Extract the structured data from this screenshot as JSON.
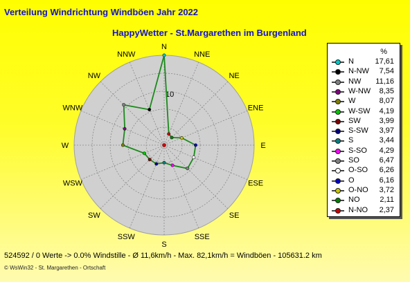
{
  "header": {
    "title": "Verteilung Windrichtung Windböen  Jahr 2022",
    "subtitle": "HappyWetter - St.Margarethen im Burgenland"
  },
  "legend": {
    "unit": "%",
    "entries": [
      {
        "label": "N",
        "value": "17,61",
        "color": "#00c8c8"
      },
      {
        "label": "N-NW",
        "value": "7,54",
        "color": "#000000"
      },
      {
        "label": "NW",
        "value": "11,16",
        "color": "#808080"
      },
      {
        "label": "W-NW",
        "value": "8,35",
        "color": "#800080"
      },
      {
        "label": "W",
        "value": "8,07",
        "color": "#808000"
      },
      {
        "label": "W-SW",
        "value": "4,19",
        "color": "#00c800"
      },
      {
        "label": "SW",
        "value": "3,99",
        "color": "#800000"
      },
      {
        "label": "S-SW",
        "value": "3,97",
        "color": "#000080"
      },
      {
        "label": "S",
        "value": "3,44",
        "color": "#008080"
      },
      {
        "label": "S-SO",
        "value": "4,29",
        "color": "#ff00ff"
      },
      {
        "label": "SO",
        "value": "6,47",
        "color": "#808080"
      },
      {
        "label": "O-SO",
        "value": "6,26",
        "color": "#ffffff"
      },
      {
        "label": "O",
        "value": "6,16",
        "color": "#0000c8"
      },
      {
        "label": "O-NO",
        "value": "3,72",
        "color": "#c8c800"
      },
      {
        "label": "NO",
        "value": "2,11",
        "color": "#008000"
      },
      {
        "label": "N-NO",
        "value": "2,37",
        "color": "#c80000"
      }
    ]
  },
  "footer": {
    "stats": "524592 / 0 Werte  -> 0.0% Windstille    -    Ø 11,6km/h   -   Max. 82,1km/h = Windböen    -    105631.2 km",
    "credit": "© WsWin32  -  St. Margarethen - Ortschaft"
  },
  "chart_data": {
    "type": "radar",
    "title": "Verteilung Windrichtung Windböen  Jahr 2022",
    "subtitle": "HappyWetter - St.Margarethen im Burgenland",
    "unit": "%",
    "directions": [
      "N",
      "NNE",
      "NE",
      "ENE",
      "E",
      "ESE",
      "SE",
      "SSE",
      "S",
      "SSW",
      "SW",
      "WSW",
      "W",
      "WNW",
      "NW",
      "NNW"
    ],
    "series": [
      {
        "values": [
          17.61,
          2.37,
          2.11,
          3.72,
          6.16,
          6.26,
          6.47,
          4.29,
          3.44,
          3.97,
          3.99,
          4.19,
          8.07,
          8.35,
          11.16,
          7.54
        ],
        "color": "#1a8a1a"
      }
    ],
    "rmax": 17.61,
    "rings": 5,
    "ring_label": "10",
    "ring_label_value": 10,
    "background": "#d0d0d0",
    "grid": true
  }
}
